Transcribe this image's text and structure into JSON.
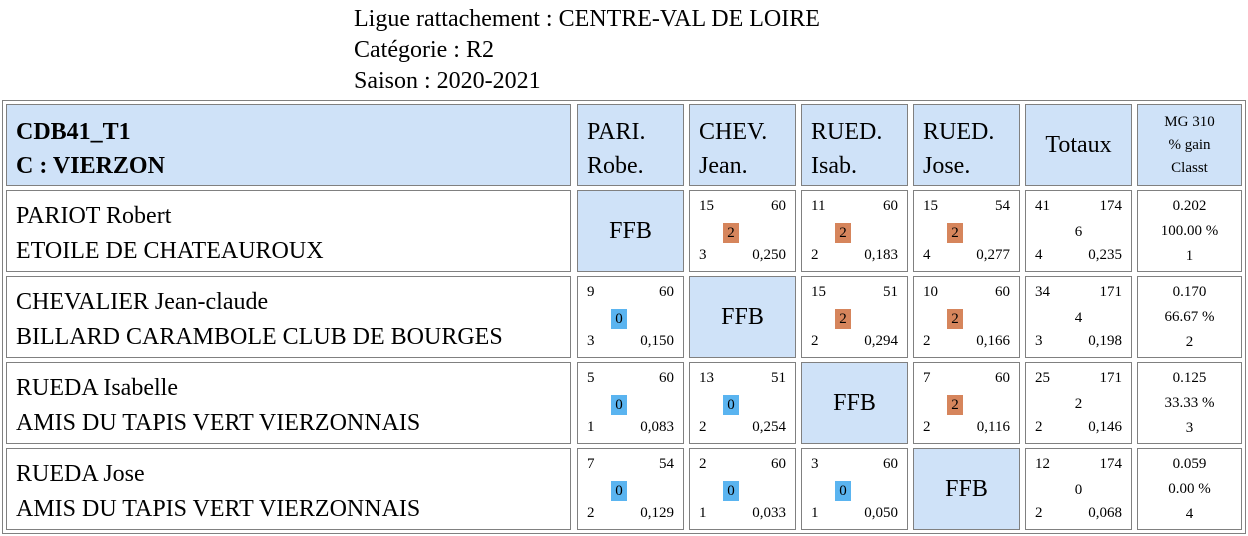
{
  "header": {
    "ligue": "Ligue rattachement : CENTRE-VAL DE LOIRE",
    "categorie": "Catégorie : R2",
    "saison": "Saison : 2020-2021"
  },
  "table": {
    "team_line1": "CDB41_T1",
    "team_line2": "C : VIERZON",
    "opponents": [
      {
        "l1": "PARI.",
        "l2": "Robe."
      },
      {
        "l1": "CHEV.",
        "l2": "Jean."
      },
      {
        "l1": "RUED.",
        "l2": "Isab."
      },
      {
        "l1": "RUED.",
        "l2": "Jose."
      }
    ],
    "totaux_label": "Totaux",
    "mg_label": "MG 310",
    "gain_label": "% gain",
    "classt_label": "Classt",
    "ffb_label": "FFB",
    "colors": {
      "header_bg": "#cfe2f8",
      "win": "#d6855c",
      "loss": "#5ab4f0",
      "border": "#808080"
    },
    "players": [
      {
        "name": "PARIOT Robert",
        "club": "ETOILE DE CHATEAUROUX",
        "matches": [
          null,
          {
            "points": "15",
            "distance": "60",
            "result": "2",
            "innings": "3",
            "average": "0,250"
          },
          {
            "points": "11",
            "distance": "60",
            "result": "2",
            "innings": "2",
            "average": "0,183"
          },
          {
            "points": "15",
            "distance": "54",
            "result": "2",
            "innings": "4",
            "average": "0,277"
          }
        ],
        "totals": {
          "points": "41",
          "distance": "174",
          "result": "6",
          "innings": "4",
          "average": "0,235"
        },
        "mg": "0.202",
        "gain": "100.00 %",
        "classt": "1"
      },
      {
        "name": "CHEVALIER Jean-claude",
        "club": "BILLARD CARAMBOLE CLUB DE BOURGES",
        "matches": [
          {
            "points": "9",
            "distance": "60",
            "result": "0",
            "innings": "3",
            "average": "0,150"
          },
          null,
          {
            "points": "15",
            "distance": "51",
            "result": "2",
            "innings": "2",
            "average": "0,294"
          },
          {
            "points": "10",
            "distance": "60",
            "result": "2",
            "innings": "2",
            "average": "0,166"
          }
        ],
        "totals": {
          "points": "34",
          "distance": "171",
          "result": "4",
          "innings": "3",
          "average": "0,198"
        },
        "mg": "0.170",
        "gain": "66.67 %",
        "classt": "2"
      },
      {
        "name": "RUEDA Isabelle",
        "club": "AMIS DU TAPIS VERT VIERZONNAIS",
        "matches": [
          {
            "points": "5",
            "distance": "60",
            "result": "0",
            "innings": "1",
            "average": "0,083"
          },
          {
            "points": "13",
            "distance": "51",
            "result": "0",
            "innings": "2",
            "average": "0,254"
          },
          null,
          {
            "points": "7",
            "distance": "60",
            "result": "2",
            "innings": "2",
            "average": "0,116"
          }
        ],
        "totals": {
          "points": "25",
          "distance": "171",
          "result": "2",
          "innings": "2",
          "average": "0,146"
        },
        "mg": "0.125",
        "gain": "33.33 %",
        "classt": "3"
      },
      {
        "name": "RUEDA Jose",
        "club": "AMIS DU TAPIS VERT VIERZONNAIS",
        "matches": [
          {
            "points": "7",
            "distance": "54",
            "result": "0",
            "innings": "2",
            "average": "0,129"
          },
          {
            "points": "2",
            "distance": "60",
            "result": "0",
            "innings": "1",
            "average": "0,033"
          },
          {
            "points": "3",
            "distance": "60",
            "result": "0",
            "innings": "1",
            "average": "0,050"
          },
          null
        ],
        "totals": {
          "points": "12",
          "distance": "174",
          "result": "0",
          "innings": "2",
          "average": "0,068"
        },
        "mg": "0.059",
        "gain": "0.00 %",
        "classt": "4"
      }
    ]
  }
}
